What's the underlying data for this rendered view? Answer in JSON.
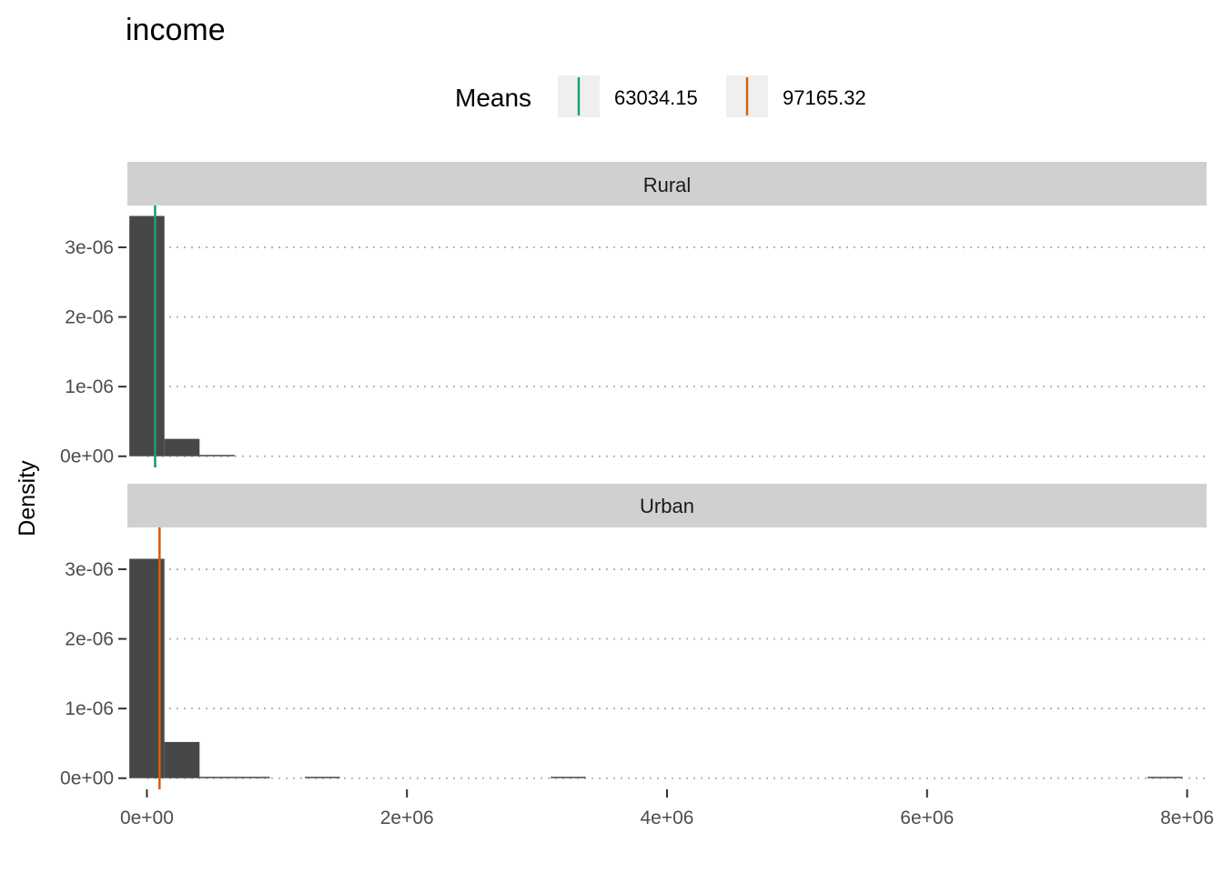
{
  "chart_data": {
    "type": "bar",
    "title": "income",
    "xlabel": "",
    "ylabel": "Density",
    "x_range": [
      -150000,
      8150000
    ],
    "x_ticks": [
      0,
      2000000,
      4000000,
      6000000,
      8000000
    ],
    "x_tick_labels": [
      "0e+00",
      "2e+06",
      "4e+06",
      "6e+06",
      "8e+06"
    ],
    "y_ticks": [
      0,
      1e-06,
      2e-06,
      3e-06
    ],
    "y_tick_labels": [
      "0e+00",
      "1e-06",
      "2e-06",
      "3e-06"
    ],
    "grid": "horizontal dotted",
    "legend": {
      "title": "Means",
      "position": "top",
      "items": [
        {
          "label": "63034.15",
          "color": "#1B9E77"
        },
        {
          "label": "97165.32",
          "color": "#D95F02"
        }
      ]
    },
    "bin_width": 270000,
    "bar_color": "#474747",
    "panels": [
      {
        "name": "Rural",
        "ylim": [
          -1.6e-07,
          3.6e-06
        ],
        "mean": 63034.15,
        "mean_color": "#1B9E77",
        "bins": [
          {
            "x0": -135000,
            "x1": 135000,
            "density": 3.45e-06
          },
          {
            "x0": 135000,
            "x1": 405000,
            "density": 2.5e-07
          },
          {
            "x0": 405000,
            "x1": 675000,
            "density": 1e-08
          }
        ]
      },
      {
        "name": "Urban",
        "ylim": [
          -1.6e-07,
          3.6e-06
        ],
        "mean": 97165.32,
        "mean_color": "#D95F02",
        "bins": [
          {
            "x0": -135000,
            "x1": 135000,
            "density": 3.15e-06
          },
          {
            "x0": 135000,
            "x1": 405000,
            "density": 5.2e-07
          },
          {
            "x0": 405000,
            "x1": 675000,
            "density": 1e-08
          },
          {
            "x0": 675000,
            "x1": 945000,
            "density": 5e-09
          },
          {
            "x0": 1215000,
            "x1": 1485000,
            "density": 5e-09
          },
          {
            "x0": 3105000,
            "x1": 3375000,
            "density": 3e-09
          },
          {
            "x0": 7695000,
            "x1": 7965000,
            "density": 3e-09
          }
        ]
      }
    ]
  }
}
